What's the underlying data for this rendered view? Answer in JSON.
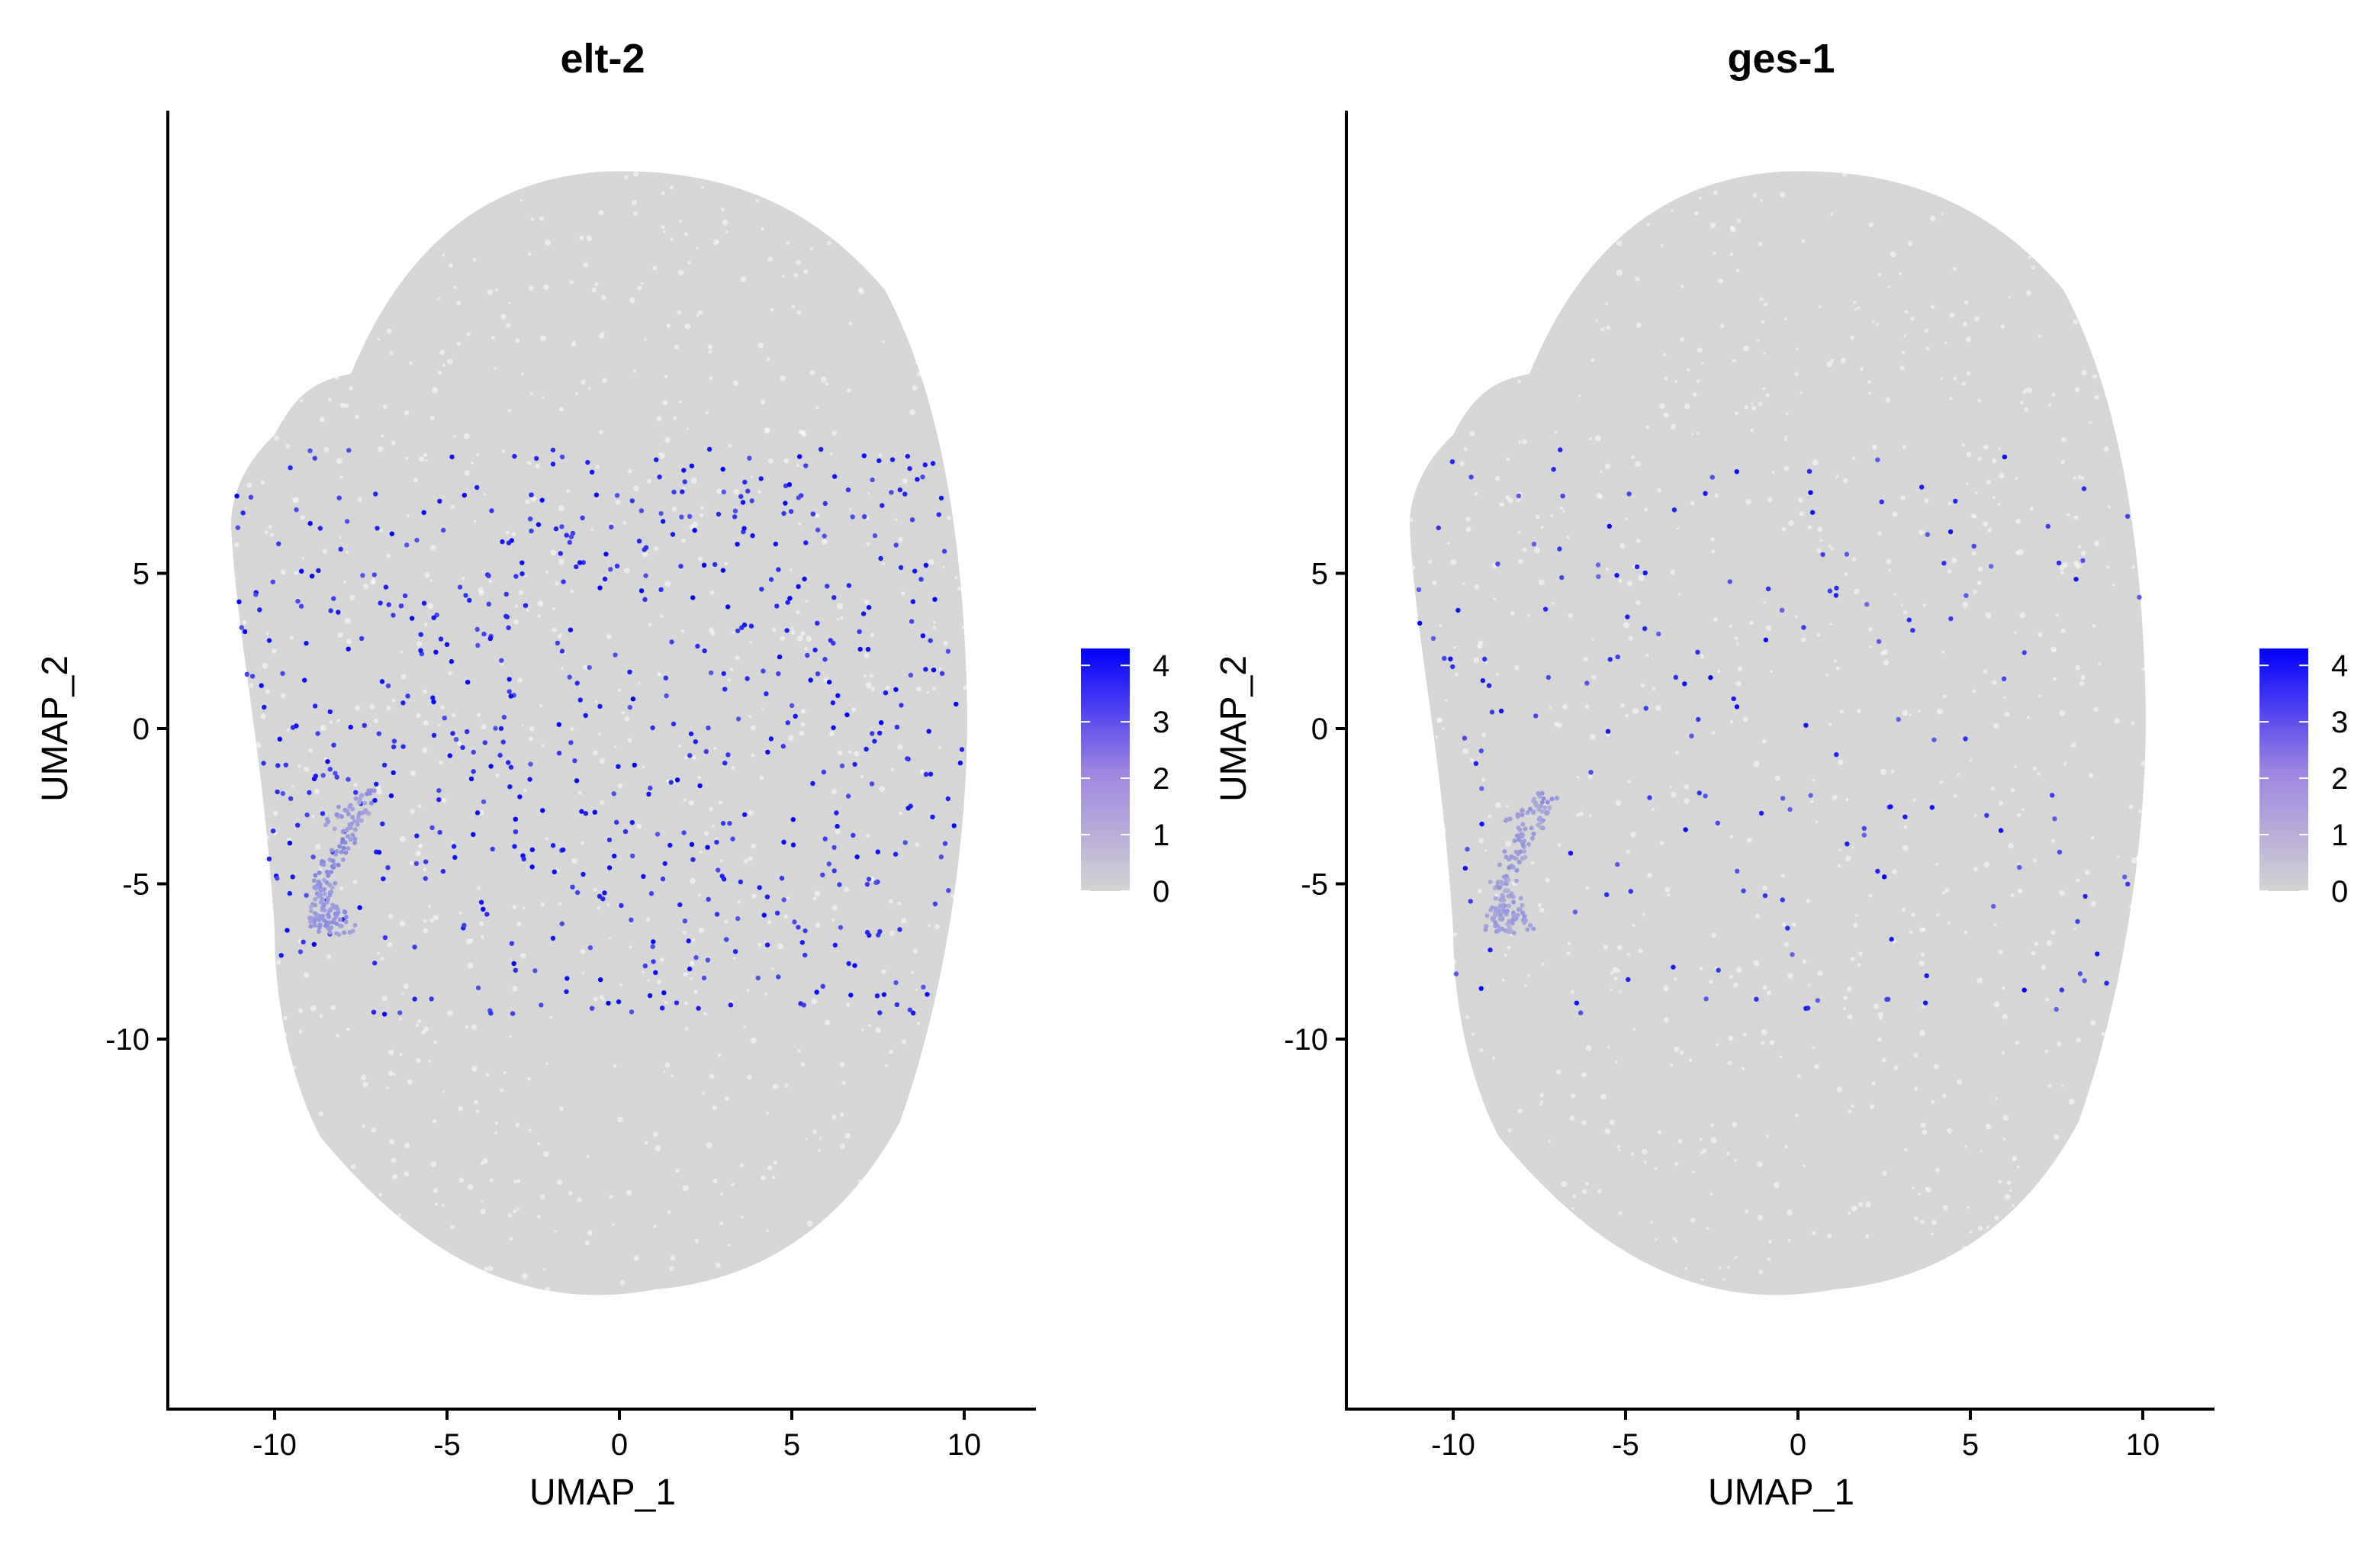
{
  "figure": {
    "panels_count": 2
  },
  "chart_data": [
    {
      "type": "scatter",
      "title": "elt-2",
      "xlabel": "UMAP_1",
      "ylabel": "UMAP_2",
      "xlim": [
        -13.2,
        12.2
      ],
      "ylim": [
        -11.0,
        10.0
      ],
      "x_ticks": [
        -10,
        -5,
        0,
        5,
        10
      ],
      "x_tick_labels": [
        "-10",
        "-5",
        "0",
        "5",
        "10"
      ],
      "y_ticks": [
        -10,
        -5,
        0,
        5
      ],
      "y_tick_labels": [
        "-10",
        "-5",
        "0",
        "5"
      ],
      "grid": false,
      "legend": {
        "type": "continuous-colorbar",
        "placement": "right",
        "range": [
          0,
          4.3
        ],
        "ticks": [
          0,
          1,
          2,
          3,
          4
        ],
        "tick_labels": [
          "0",
          "1",
          "2",
          "3",
          "4"
        ],
        "low_color": "#D3D3D3",
        "high_color": "#0000FF"
      },
      "background_color": "#D3D3D3",
      "expressing_density": "high",
      "cluster_tail": {
        "label": "",
        "points": [
          [
            -8.7,
            -5.0
          ],
          [
            -8.6,
            -5.3
          ],
          [
            -8.65,
            -5.6
          ],
          [
            -8.7,
            -5.9
          ],
          [
            -8.75,
            -6.2
          ],
          [
            -8.5,
            -6.35
          ],
          [
            -8.2,
            -6.4
          ],
          [
            -8.3,
            -6.1
          ],
          [
            -8.4,
            -5.8
          ],
          [
            -8.5,
            -5.5
          ],
          [
            -8.2,
            -4.5
          ],
          [
            -8.0,
            -4.0
          ],
          [
            -7.8,
            -3.5
          ],
          [
            -7.6,
            -3.0
          ],
          [
            -7.4,
            -2.6
          ],
          [
            -7.2,
            -2.2
          ],
          [
            -8.3,
            -3.0
          ],
          [
            -8.0,
            -2.6
          ],
          [
            -7.7,
            -2.3
          ],
          [
            -8.4,
            -4.2
          ],
          [
            -8.1,
            -3.8
          ],
          [
            -7.9,
            -3.3
          ],
          [
            -7.5,
            -2.8
          ],
          [
            -8.6,
            -4.8
          ],
          [
            -8.4,
            -5.1
          ],
          [
            -8.2,
            -5.6
          ],
          [
            -8.1,
            -6.0
          ],
          [
            -7.9,
            -6.4
          ],
          [
            -8.8,
            -6.0
          ],
          [
            -8.9,
            -6.3
          ]
        ],
        "values": [
          1.2,
          1.3,
          1.1,
          1.0,
          1.2,
          1.4,
          1.1,
          1.3,
          1.2,
          1.0,
          1.5,
          1.3,
          1.2,
          1.1,
          1.0,
          1.4,
          1.1,
          1.2,
          1.0,
          1.3,
          1.5,
          1.2,
          1.1,
          1.4,
          1.0,
          1.2,
          1.3,
          1.1,
          1.0,
          1.2
        ]
      }
    },
    {
      "type": "scatter",
      "title": "ges-1",
      "xlabel": "UMAP_1",
      "ylabel": "UMAP_2",
      "xlim": [
        -13.2,
        12.2
      ],
      "ylim": [
        -11.0,
        10.0
      ],
      "x_ticks": [
        -10,
        -5,
        0,
        5,
        10
      ],
      "x_tick_labels": [
        "-10",
        "-5",
        "0",
        "5",
        "10"
      ],
      "y_ticks": [
        -10,
        -5,
        0,
        5
      ],
      "y_tick_labels": [
        "-10",
        "-5",
        "0",
        "5"
      ],
      "grid": false,
      "legend": {
        "type": "continuous-colorbar",
        "placement": "right",
        "range": [
          0,
          4.3
        ],
        "ticks": [
          0,
          1,
          2,
          3,
          4
        ],
        "tick_labels": [
          "0",
          "1",
          "2",
          "3",
          "4"
        ],
        "low_color": "#D3D3D3",
        "high_color": "#0000FF"
      },
      "background_color": "#D3D3D3",
      "expressing_density": "low",
      "cluster_tail": {
        "label": "",
        "points": [
          [
            -8.7,
            -5.0
          ],
          [
            -8.6,
            -5.3
          ],
          [
            -8.65,
            -5.6
          ],
          [
            -8.7,
            -5.9
          ],
          [
            -8.75,
            -6.2
          ],
          [
            -8.5,
            -6.35
          ],
          [
            -8.2,
            -6.4
          ],
          [
            -8.3,
            -6.1
          ],
          [
            -8.4,
            -5.8
          ],
          [
            -8.5,
            -5.5
          ],
          [
            -8.2,
            -4.5
          ],
          [
            -8.0,
            -4.0
          ],
          [
            -7.8,
            -3.5
          ],
          [
            -7.6,
            -3.0
          ],
          [
            -7.4,
            -2.6
          ],
          [
            -7.2,
            -2.2
          ],
          [
            -8.3,
            -3.0
          ],
          [
            -8.0,
            -2.6
          ],
          [
            -7.7,
            -2.3
          ],
          [
            -8.4,
            -4.2
          ],
          [
            -8.1,
            -3.8
          ],
          [
            -7.9,
            -3.3
          ],
          [
            -7.5,
            -2.8
          ],
          [
            -8.6,
            -4.8
          ],
          [
            -8.4,
            -5.1
          ],
          [
            -8.2,
            -5.6
          ],
          [
            -8.1,
            -6.0
          ],
          [
            -7.9,
            -6.4
          ],
          [
            -8.8,
            -6.0
          ],
          [
            -8.9,
            -6.3
          ]
        ],
        "values": [
          1.0,
          1.1,
          0.9,
          1.0,
          1.2,
          1.1,
          0.9,
          1.0,
          1.1,
          0.9,
          1.2,
          1.0,
          1.1,
          0.9,
          1.0,
          1.3,
          1.0,
          1.1,
          0.9,
          1.0,
          1.2,
          1.1,
          1.0,
          1.2,
          0.9,
          1.0,
          1.1,
          1.0,
          0.9,
          1.1
        ]
      }
    }
  ]
}
